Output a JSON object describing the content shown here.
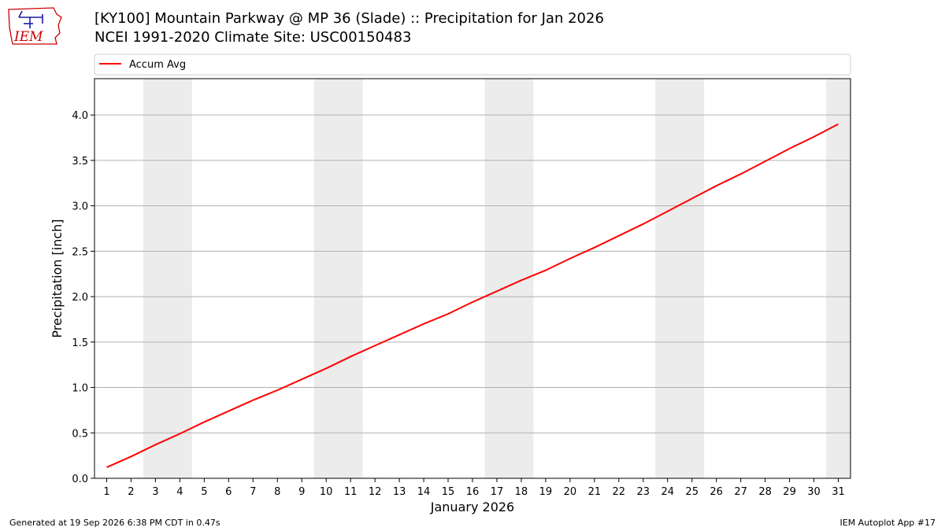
{
  "header": {
    "title": "[KY100] Mountain Parkway @ MP 36 (Slade) :: Precipitation for Jan 2026",
    "subtitle": "NCEI 1991-2020 Climate Site: USC00150483",
    "logo_text": "IEM"
  },
  "footer": {
    "generated": "Generated at 19 Sep 2026 6:38 PM CDT in 0.47s",
    "app": "IEM Autoplot App #17"
  },
  "colors": {
    "line": "#ff0000",
    "weekend_band": "#ececec",
    "grid": "#b0b0b0",
    "logo": "#cc0000"
  },
  "chart_data": {
    "type": "line",
    "title": "[KY100] Mountain Parkway @ MP 36 (Slade) :: Precipitation for Jan 2026",
    "subtitle": "NCEI 1991-2020 Climate Site: USC00150483",
    "xlabel": "January 2026",
    "ylabel": "Precipitation [inch]",
    "x": [
      1,
      2,
      3,
      4,
      5,
      6,
      7,
      8,
      9,
      10,
      11,
      12,
      13,
      14,
      15,
      16,
      17,
      18,
      19,
      20,
      21,
      22,
      23,
      24,
      25,
      26,
      27,
      28,
      29,
      30,
      31
    ],
    "series": [
      {
        "name": "Accum Avg",
        "color": "#ff0000",
        "values": [
          0.12,
          0.24,
          0.37,
          0.49,
          0.62,
          0.74,
          0.86,
          0.97,
          1.09,
          1.21,
          1.34,
          1.46,
          1.58,
          1.7,
          1.81,
          1.94,
          2.06,
          2.18,
          2.29,
          2.42,
          2.54,
          2.67,
          2.8,
          2.94,
          3.08,
          3.22,
          3.35,
          3.49,
          3.63,
          3.76,
          3.9
        ]
      }
    ],
    "weekend_bands": [
      [
        3,
        4
      ],
      [
        10,
        11
      ],
      [
        17,
        18
      ],
      [
        24,
        25
      ],
      [
        31,
        31
      ]
    ],
    "xlim": [
      0.5,
      31.5
    ],
    "ylim": [
      0,
      4.4
    ],
    "yticks": [
      0.0,
      0.5,
      1.0,
      1.5,
      2.0,
      2.5,
      3.0,
      3.5,
      4.0
    ],
    "ytick_labels": [
      "0.0",
      "0.5",
      "1.0",
      "1.5",
      "2.0",
      "2.5",
      "3.0",
      "3.5",
      "4.0"
    ],
    "xtick_labels": [
      "1",
      "2",
      "3",
      "4",
      "5",
      "6",
      "7",
      "8",
      "9",
      "10",
      "11",
      "12",
      "13",
      "14",
      "15",
      "16",
      "17",
      "18",
      "19",
      "20",
      "21",
      "22",
      "23",
      "24",
      "25",
      "26",
      "27",
      "28",
      "29",
      "30",
      "31"
    ],
    "grid": "horizontal",
    "legend_position": "top-left, above plot"
  }
}
